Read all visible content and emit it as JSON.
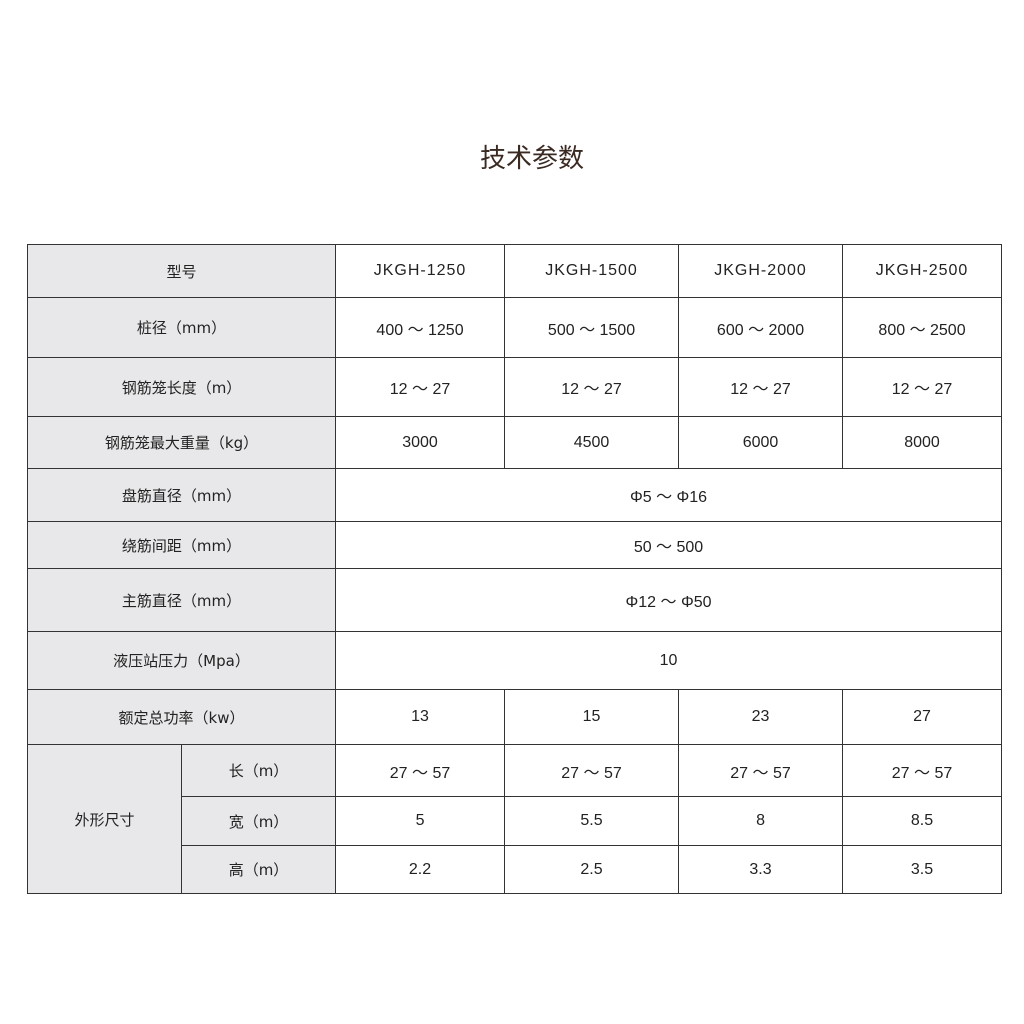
{
  "title": "技术参数",
  "table": {
    "header": {
      "label": "型号",
      "models": [
        "JKGH-1250",
        "JKGH-1500",
        "JKGH-2000",
        "JKGH-2500"
      ]
    },
    "rows": [
      {
        "label": "桩径（mm）",
        "values": [
          "400 ～ 1250",
          "500 ～ 1500",
          "600 ～ 2000",
          "800 ～ 2500"
        ]
      },
      {
        "label": "钢筋笼长度（m）",
        "values": [
          "12 ～ 27",
          "12 ～ 27",
          "12 ～ 27",
          "12 ～ 27"
        ]
      },
      {
        "label": "钢筋笼最大重量（kg）",
        "values": [
          "3000",
          "4500",
          "6000",
          "8000"
        ]
      },
      {
        "label": "盘筋直径（mm）",
        "value": "Φ5 ～ Φ16"
      },
      {
        "label": "绕筋间距（mm）",
        "value": "50 ～ 500"
      },
      {
        "label": "主筋直径（mm）",
        "value": "Φ12 ～ Φ50"
      },
      {
        "label": "液压站压力（Mpa）",
        "value": "10"
      },
      {
        "label": "额定总功率（kw）",
        "values": [
          "13",
          "15",
          "23",
          "27"
        ]
      }
    ],
    "dimensions": {
      "label": "外形尺寸",
      "rows": [
        {
          "label": "长（m）",
          "values": [
            "27 ～ 57",
            "27 ～ 57",
            "27 ～ 57",
            "27 ～ 57"
          ]
        },
        {
          "label": "宽（m）",
          "values": [
            "5",
            "5.5",
            "8",
            "8.5"
          ]
        },
        {
          "label": "高（m）",
          "values": [
            "2.2",
            "2.5",
            "3.3",
            "3.5"
          ]
        }
      ]
    }
  }
}
